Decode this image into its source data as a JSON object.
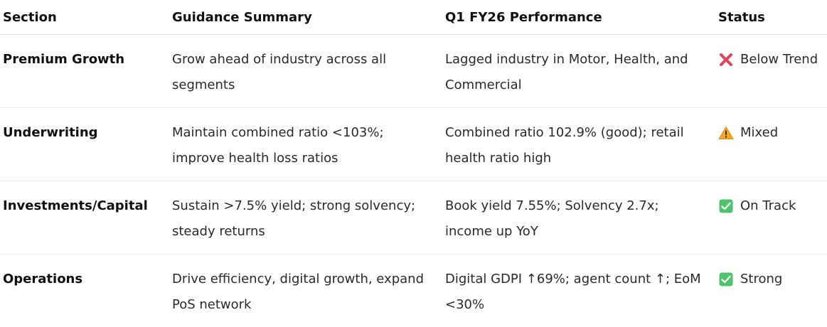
{
  "headers": {
    "section": "Section",
    "guidance": "Guidance Summary",
    "performance": "Q1 FY26 Performance",
    "status": "Status"
  },
  "rows": [
    {
      "section": "Premium Growth",
      "guidance": "Grow ahead of industry across all segments",
      "performance": "Lagged industry in Motor, Health, and Commercial",
      "status": "Below Trend",
      "status_icon": "cross-mark-icon",
      "status_color": "#e0445a"
    },
    {
      "section": "Underwriting",
      "guidance": "Maintain combined ratio <103%; improve health loss ratios",
      "performance": "Combined ratio 102.9% (good); retail health ratio high",
      "status": "Mixed",
      "status_icon": "warning-icon",
      "status_color": "#f5a623"
    },
    {
      "section": "Investments/Capital",
      "guidance": "Sustain >7.5% yield; strong solvency; steady returns",
      "performance": "Book yield 7.55%; Solvency 2.7x; income up YoY",
      "status": "On Track",
      "status_icon": "check-box-icon",
      "status_color": "#4cc46b"
    },
    {
      "section": "Operations",
      "guidance": "Drive efficiency, digital growth, expand PoS network",
      "performance": "Digital GDPI ↑69%; agent count ↑; EoM <30%",
      "status": "Strong",
      "status_icon": "check-box-icon",
      "status_color": "#4cc46b"
    }
  ]
}
